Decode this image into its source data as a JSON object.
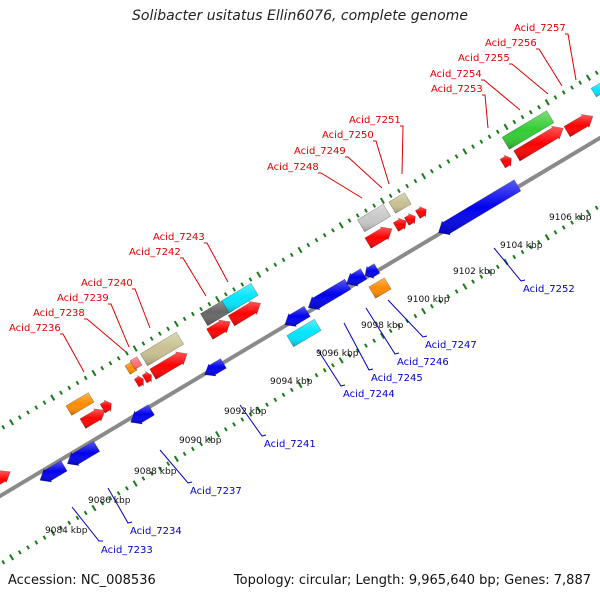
{
  "title": "Solibacter usitatus Ellin6076, complete genome",
  "accession_text": "Accession: NC_008536",
  "summary_text": "Topology: circular; Length: 9,965,640 bp; Genes: 7,887",
  "colors": {
    "backbone": "#8a8a8a",
    "top_strand_label": "#e00000",
    "bottom_strand_label": "#0000cc",
    "tick_dots": "#1a7a1a",
    "leader_top": "#e00000",
    "leader_bottom": "#0000cc"
  },
  "ruler": [
    {
      "label": "9084 kbp"
    },
    {
      "label": "9086 kbp"
    },
    {
      "label": "9088 kbp"
    },
    {
      "label": "9090 kbp"
    },
    {
      "label": "9092 kbp"
    },
    {
      "label": "9094 kbp"
    },
    {
      "label": "9096 kbp"
    },
    {
      "label": "9098 kbp"
    },
    {
      "label": "9100 kbp"
    },
    {
      "label": "9102 kbp"
    },
    {
      "label": "9104 kbp"
    },
    {
      "label": "9106 kbp"
    }
  ],
  "top_genes": [
    {
      "label": "Acid_7236",
      "color": "#ff8c00"
    },
    {
      "label": "Acid_7238",
      "color": "#ff7070"
    },
    {
      "label": "Acid_7239",
      "color": "#ff8c00"
    },
    {
      "label": "Acid_7240",
      "color": "#c8c090"
    },
    {
      "label": "Acid_7242",
      "color": "#666666"
    },
    {
      "label": "Acid_7243",
      "color": "#00e5ff"
    },
    {
      "label": "Acid_7248",
      "color": "#c8c8c8"
    },
    {
      "label": "Acid_7249",
      "color": "#ff0000"
    },
    {
      "label": "Acid_7250",
      "color": "#ff0000"
    },
    {
      "label": "Acid_7251",
      "color": "#c8c090"
    },
    {
      "label": "Acid_7253",
      "color": "#33cc33"
    },
    {
      "label": "Acid_7254",
      "color": "#ff0000"
    },
    {
      "label": "Acid_7255",
      "color": "#ff0000"
    },
    {
      "label": "Acid_7256",
      "color": "#ff0000"
    },
    {
      "label": "Acid_7257",
      "color": "#ff0000"
    }
  ],
  "bottom_genes": [
    {
      "label": "Acid_7233",
      "color": "#0000ee"
    },
    {
      "label": "Acid_7234",
      "color": "#0000ee"
    },
    {
      "label": "Acid_7237",
      "color": "#0000ee"
    },
    {
      "label": "Acid_7241",
      "color": "#0000ee"
    },
    {
      "label": "Acid_7244",
      "color": "#00e5ff"
    },
    {
      "label": "Acid_7245",
      "color": "#0000ee"
    },
    {
      "label": "Acid_7246",
      "color": "#0000ee"
    },
    {
      "label": "Acid_7247",
      "color": "#ff8c00"
    },
    {
      "label": "Acid_7252",
      "color": "#0000ee"
    }
  ]
}
